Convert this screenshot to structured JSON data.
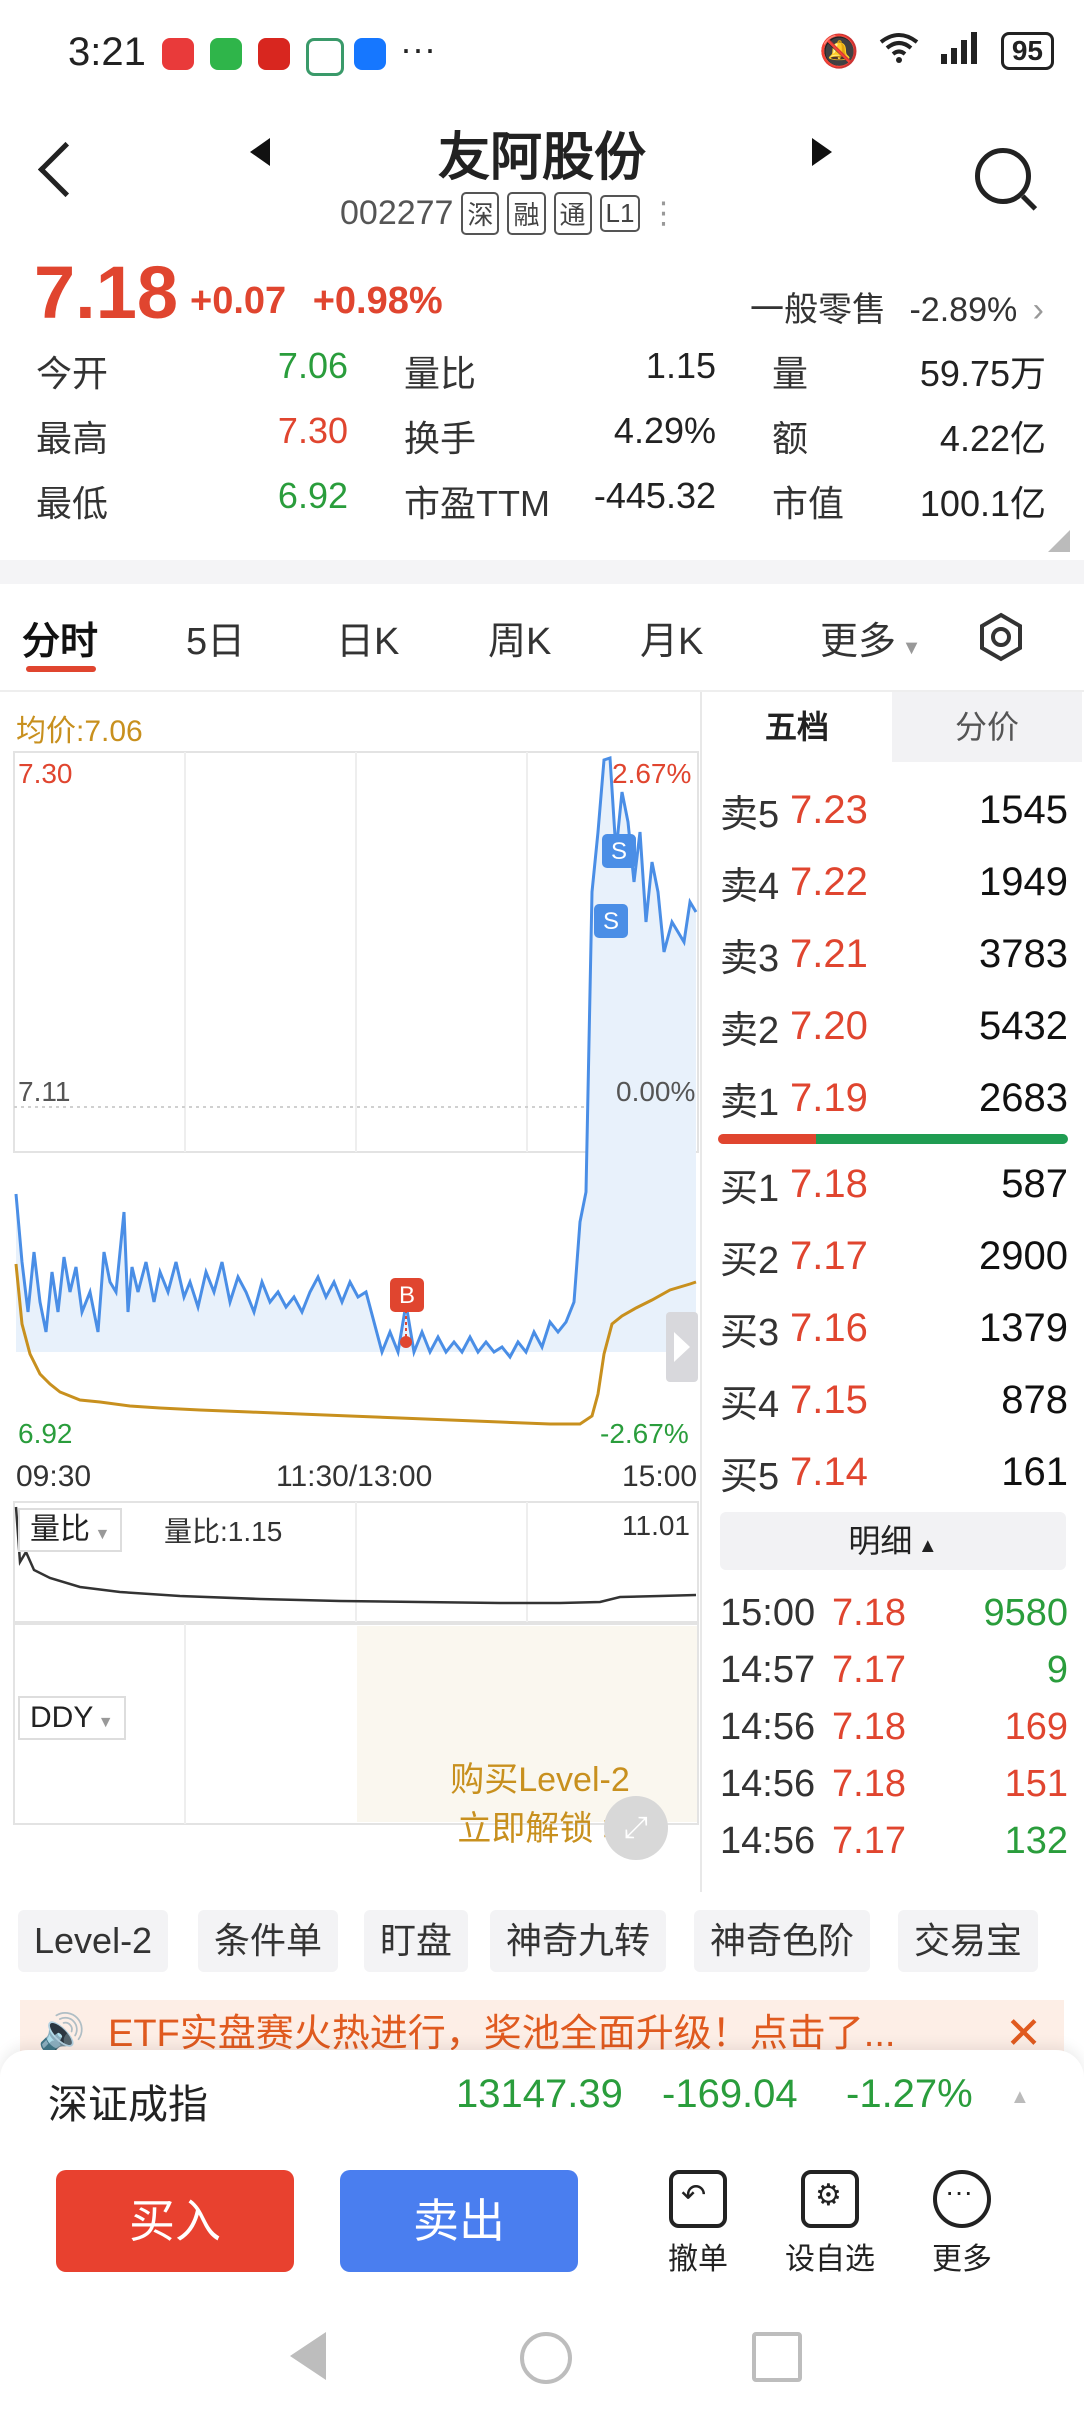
{
  "status_bar": {
    "time": "3:21",
    "more": "···",
    "battery": "95"
  },
  "header": {
    "stock_name": "友阿股份",
    "code": "002277",
    "tags": [
      "深",
      "融",
      "通",
      "L1"
    ]
  },
  "quote": {
    "price": "7.18",
    "change": "+0.07",
    "change_pct": "+0.98%",
    "sector_name": "一般零售",
    "sector_pct": "-2.89%",
    "stats": [
      [
        {
          "label": "今开",
          "value": "7.06",
          "color": "green"
        },
        {
          "label": "量比",
          "value": "1.15"
        },
        {
          "label": "量",
          "value": "59.75万"
        }
      ],
      [
        {
          "label": "最高",
          "value": "7.30",
          "color": "red"
        },
        {
          "label": "换手",
          "value": "4.29%"
        },
        {
          "label": "额",
          "value": "4.22亿"
        }
      ],
      [
        {
          "label": "最低",
          "value": "6.92",
          "color": "green"
        },
        {
          "label": "市盈TTM",
          "value": "-445.32"
        },
        {
          "label": "市值",
          "value": "100.1亿"
        }
      ]
    ]
  },
  "tabs": [
    "分时",
    "5日",
    "日K",
    "周K",
    "月K",
    "更多"
  ],
  "chart": {
    "avg_label": "均价:7.06",
    "high": "7.30",
    "high_pct": "2.67%",
    "mid": "7.11",
    "mid_pct": "0.00%",
    "low": "6.92",
    "low_pct": "-2.67%",
    "t_start": "09:30",
    "t_mid": "11:30/13:00",
    "t_end": "15:00",
    "marker_b": "B",
    "marker_s": "S",
    "vol_indicator": "量比",
    "vol_ratio_label": "量比:1.15",
    "vol_max": "11.01",
    "ddy_indicator": "DDY",
    "lock_line1": "购买Level-2",
    "lock_line2": "立即解锁 >"
  },
  "orderbook": {
    "tab_active": "五档",
    "tab_other": "分价",
    "asks": [
      {
        "label": "卖5",
        "price": "7.23",
        "vol": "1545"
      },
      {
        "label": "卖4",
        "price": "7.22",
        "vol": "1949"
      },
      {
        "label": "卖3",
        "price": "7.21",
        "vol": "3783"
      },
      {
        "label": "卖2",
        "price": "7.20",
        "vol": "5432"
      },
      {
        "label": "卖1",
        "price": "7.19",
        "vol": "2683"
      }
    ],
    "bids": [
      {
        "label": "买1",
        "price": "7.18",
        "vol": "587"
      },
      {
        "label": "买2",
        "price": "7.17",
        "vol": "2900"
      },
      {
        "label": "买3",
        "price": "7.16",
        "vol": "1379"
      },
      {
        "label": "买4",
        "price": "7.15",
        "vol": "878"
      },
      {
        "label": "买5",
        "price": "7.14",
        "vol": "161"
      }
    ],
    "detail_header": "明细",
    "ticks": [
      {
        "time": "15:00",
        "price": "7.18",
        "vol": "9580",
        "pc": "red",
        "vc": "green"
      },
      {
        "time": "14:57",
        "price": "7.17",
        "vol": "9",
        "pc": "red",
        "vc": "green"
      },
      {
        "time": "14:56",
        "price": "7.18",
        "vol": "169",
        "pc": "red",
        "vc": "red"
      },
      {
        "time": "14:56",
        "price": "7.18",
        "vol": "151",
        "pc": "red",
        "vc": "red"
      },
      {
        "time": "14:56",
        "price": "7.17",
        "vol": "132",
        "pc": "red",
        "vc": "green"
      }
    ]
  },
  "features": [
    "Level-2",
    "条件单",
    "盯盘",
    "神奇九转",
    "神奇色阶",
    "交易宝"
  ],
  "banner": "ETF实盘赛火热进行，奖池全面升级！点击了...",
  "index_bar": {
    "name": "深证成指",
    "value": "13147.39",
    "change": "-169.04",
    "pct": "-1.27%"
  },
  "actions": {
    "buy": "买入",
    "sell": "卖出",
    "cancel": "撤单",
    "watch": "设自选",
    "more": "更多"
  },
  "colors": {
    "up": "#e0452f",
    "down": "#2a9d3c",
    "price_line": "#4a8ee6",
    "avg_line": "#c8901e",
    "sell_btn": "#4a7eef"
  }
}
